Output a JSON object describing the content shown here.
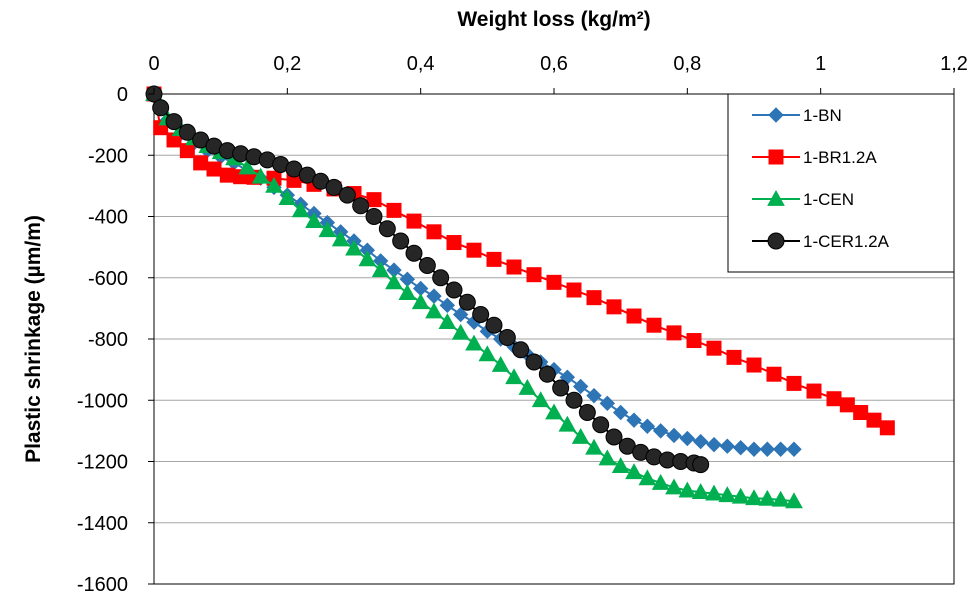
{
  "chart_data": {
    "type": "line",
    "title": "",
    "xlabel": "Weight loss (kg/m²)",
    "ylabel": "Plastic shrinkage (µm/m)",
    "x_axis_position": "top",
    "xlim": [
      0,
      1.2
    ],
    "ylim": [
      -1600,
      0
    ],
    "x_ticks": [
      0,
      0.2,
      0.4,
      0.6,
      0.8,
      1,
      1.2
    ],
    "x_tick_labels": [
      "0",
      "0,2",
      "0,4",
      "0,6",
      "0,8",
      "1",
      "1,2"
    ],
    "y_ticks": [
      0,
      -200,
      -400,
      -600,
      -800,
      -1000,
      -1200,
      -1400,
      -1600
    ],
    "y_tick_labels": [
      "0",
      "-200",
      "-400",
      "-600",
      "-800",
      "-1000",
      "-1200",
      "-1400",
      "-1600"
    ],
    "grid": "horizontal",
    "legend_position": "top-right",
    "series": [
      {
        "name": "1-BN",
        "color": "#2E75B6",
        "marker": "diamond",
        "x": [
          0,
          0.02,
          0.04,
          0.06,
          0.08,
          0.1,
          0.12,
          0.14,
          0.16,
          0.18,
          0.2,
          0.22,
          0.24,
          0.26,
          0.28,
          0.3,
          0.32,
          0.34,
          0.36,
          0.38,
          0.4,
          0.42,
          0.44,
          0.46,
          0.48,
          0.5,
          0.52,
          0.54,
          0.56,
          0.58,
          0.6,
          0.62,
          0.64,
          0.66,
          0.68,
          0.7,
          0.72,
          0.74,
          0.76,
          0.78,
          0.8,
          0.82,
          0.84,
          0.86,
          0.88,
          0.9,
          0.92,
          0.94,
          0.96
        ],
        "y": [
          0,
          -85,
          -130,
          -160,
          -185,
          -205,
          -225,
          -250,
          -275,
          -305,
          -330,
          -360,
          -390,
          -420,
          -450,
          -480,
          -510,
          -545,
          -575,
          -605,
          -635,
          -660,
          -690,
          -720,
          -745,
          -775,
          -800,
          -825,
          -850,
          -875,
          -900,
          -925,
          -955,
          -985,
          -1010,
          -1040,
          -1065,
          -1085,
          -1100,
          -1115,
          -1125,
          -1135,
          -1145,
          -1150,
          -1155,
          -1160,
          -1160,
          -1160,
          -1160
        ]
      },
      {
        "name": "1-BR1.2A",
        "color": "#FF0000",
        "marker": "square",
        "x": [
          0,
          0.01,
          0.03,
          0.05,
          0.07,
          0.09,
          0.11,
          0.13,
          0.15,
          0.18,
          0.21,
          0.24,
          0.27,
          0.3,
          0.33,
          0.36,
          0.39,
          0.42,
          0.45,
          0.48,
          0.51,
          0.54,
          0.57,
          0.6,
          0.63,
          0.66,
          0.69,
          0.72,
          0.75,
          0.78,
          0.81,
          0.84,
          0.87,
          0.9,
          0.93,
          0.96,
          0.99,
          1.02,
          1.04,
          1.06,
          1.08,
          1.1
        ],
        "y": [
          0,
          -110,
          -150,
          -185,
          -225,
          -245,
          -265,
          -270,
          -272,
          -275,
          -282,
          -295,
          -310,
          -325,
          -345,
          -380,
          -415,
          -450,
          -485,
          -510,
          -540,
          -565,
          -590,
          -615,
          -640,
          -665,
          -695,
          -725,
          -755,
          -780,
          -805,
          -830,
          -860,
          -885,
          -915,
          -945,
          -970,
          -995,
          -1015,
          -1040,
          -1065,
          -1090
        ]
      },
      {
        "name": "1-CEN",
        "color": "#00B050",
        "marker": "triangle",
        "x": [
          0,
          0.02,
          0.04,
          0.06,
          0.08,
          0.1,
          0.12,
          0.14,
          0.16,
          0.18,
          0.2,
          0.22,
          0.24,
          0.26,
          0.28,
          0.3,
          0.32,
          0.34,
          0.36,
          0.38,
          0.4,
          0.42,
          0.44,
          0.46,
          0.48,
          0.5,
          0.52,
          0.54,
          0.56,
          0.58,
          0.6,
          0.62,
          0.64,
          0.66,
          0.68,
          0.7,
          0.72,
          0.74,
          0.76,
          0.78,
          0.8,
          0.82,
          0.84,
          0.86,
          0.88,
          0.9,
          0.92,
          0.94,
          0.96
        ],
        "y": [
          0,
          -80,
          -115,
          -145,
          -170,
          -190,
          -210,
          -240,
          -270,
          -300,
          -340,
          -380,
          -415,
          -445,
          -475,
          -505,
          -540,
          -575,
          -615,
          -650,
          -680,
          -710,
          -745,
          -780,
          -815,
          -850,
          -885,
          -925,
          -960,
          -1000,
          -1040,
          -1080,
          -1120,
          -1155,
          -1190,
          -1215,
          -1235,
          -1255,
          -1270,
          -1285,
          -1295,
          -1300,
          -1305,
          -1310,
          -1315,
          -1320,
          -1322,
          -1325,
          -1330
        ]
      },
      {
        "name": "1-CER1.2A",
        "color": "#000000",
        "marker": "circle",
        "x": [
          0,
          0.01,
          0.03,
          0.05,
          0.07,
          0.09,
          0.11,
          0.13,
          0.15,
          0.17,
          0.19,
          0.21,
          0.23,
          0.25,
          0.27,
          0.29,
          0.31,
          0.33,
          0.35,
          0.37,
          0.39,
          0.41,
          0.43,
          0.45,
          0.47,
          0.49,
          0.51,
          0.53,
          0.55,
          0.57,
          0.59,
          0.61,
          0.63,
          0.65,
          0.67,
          0.69,
          0.71,
          0.73,
          0.75,
          0.77,
          0.79,
          0.81,
          0.82
        ],
        "y": [
          0,
          -45,
          -90,
          -125,
          -150,
          -170,
          -185,
          -195,
          -205,
          -215,
          -230,
          -245,
          -265,
          -285,
          -305,
          -330,
          -365,
          -400,
          -440,
          -480,
          -520,
          -560,
          -600,
          -640,
          -680,
          -720,
          -755,
          -795,
          -835,
          -875,
          -915,
          -960,
          -1000,
          -1040,
          -1080,
          -1120,
          -1150,
          -1170,
          -1185,
          -1195,
          -1200,
          -1205,
          -1210
        ]
      }
    ]
  }
}
